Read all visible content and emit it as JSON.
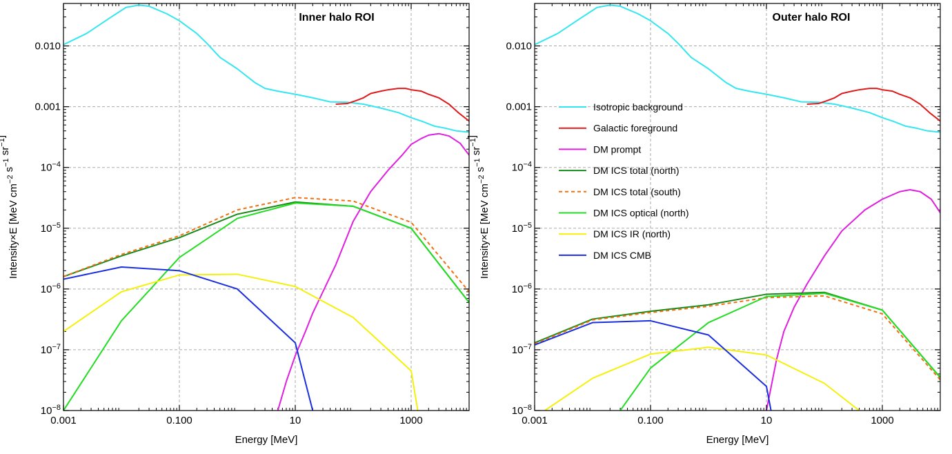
{
  "chart_data": [
    {
      "type": "line",
      "title": "Inner halo ROI",
      "xlabel": "Energy [MeV]",
      "ylabel": "Intensity×E [MeV cm⁻² s⁻¹ sr⁻¹]",
      "xscale": "log",
      "yscale": "log",
      "xlim": [
        0.001,
        10000
      ],
      "ylim": [
        1e-08,
        0.05
      ],
      "x_ticks": [
        0.001,
        0.1,
        10,
        1000
      ],
      "x_tick_labels": [
        "0.001",
        "0.100",
        "10",
        "1000"
      ],
      "y_ticks": [
        1e-08,
        1e-07,
        1e-06,
        1e-05,
        0.0001,
        0.001,
        0.01
      ],
      "y_tick_labels": [
        "10^-8",
        "10^-7",
        "10^-6",
        "10^-5",
        "10^-4",
        "0.001",
        "0.010"
      ],
      "grid": true,
      "legend": false,
      "series": [
        {
          "name": "Isotropic background",
          "color": "#33e6f0",
          "style": "solid",
          "points": [
            [
              0.001,
              0.0105
            ],
            [
              0.0025,
              0.016
            ],
            [
              0.006,
              0.028
            ],
            [
              0.012,
              0.043
            ],
            [
              0.02,
              0.047
            ],
            [
              0.03,
              0.045
            ],
            [
              0.06,
              0.034
            ],
            [
              0.1,
              0.026
            ],
            [
              0.2,
              0.016
            ],
            [
              0.3,
              0.011
            ],
            [
              0.5,
              0.0065
            ],
            [
              1,
              0.0042
            ],
            [
              2,
              0.0025
            ],
            [
              3,
              0.002
            ],
            [
              5,
              0.0018
            ],
            [
              10,
              0.0016
            ],
            [
              20,
              0.0014
            ],
            [
              40,
              0.0012
            ],
            [
              80,
              0.00118
            ],
            [
              150,
              0.0011
            ],
            [
              300,
              0.00095
            ],
            [
              600,
              0.0008
            ],
            [
              1000,
              0.00066
            ],
            [
              1500,
              0.00058
            ],
            [
              2500,
              0.00048
            ],
            [
              4000,
              0.00044
            ],
            [
              6000,
              0.0004
            ],
            [
              10000,
              0.00038
            ]
          ]
        },
        {
          "name": "Galactic foreground",
          "color": "#e01a1a",
          "style": "solid",
          "points": [
            [
              50,
              0.0011
            ],
            [
              80,
              0.00113
            ],
            [
              110,
              0.00125
            ],
            [
              150,
              0.0014
            ],
            [
              200,
              0.00165
            ],
            [
              300,
              0.0018
            ],
            [
              400,
              0.0019
            ],
            [
              600,
              0.002
            ],
            [
              800,
              0.002
            ],
            [
              1000,
              0.0019
            ],
            [
              1500,
              0.0018
            ],
            [
              2000,
              0.0016
            ],
            [
              3000,
              0.0014
            ],
            [
              4500,
              0.0011
            ],
            [
              6500,
              0.0008
            ],
            [
              10000,
              0.00058
            ]
          ]
        },
        {
          "name": "DM prompt",
          "color": "#e01ee0",
          "style": "solid",
          "points": [
            [
              5,
              1e-08
            ],
            [
              7,
              3e-08
            ],
            [
              10,
              8e-08
            ],
            [
              15,
              2e-07
            ],
            [
              20,
              4e-07
            ],
            [
              30,
              9e-07
            ],
            [
              50,
              2.5e-06
            ],
            [
              100,
              1.3e-05
            ],
            [
              200,
              4e-05
            ],
            [
              400,
              9e-05
            ],
            [
              700,
              0.00016
            ],
            [
              1000,
              0.00024
            ],
            [
              1500,
              0.0003
            ],
            [
              2000,
              0.00034
            ],
            [
              3000,
              0.00036
            ],
            [
              4500,
              0.00033
            ],
            [
              7000,
              0.00025
            ],
            [
              10000,
              0.00016
            ]
          ]
        },
        {
          "name": "DM ICS total (north)",
          "color": "#1a8a1a",
          "style": "solid",
          "points": [
            [
              0.001,
              1.6e-06
            ],
            [
              0.01,
              3.5e-06
            ],
            [
              0.1,
              7e-06
            ],
            [
              1,
              1.7e-05
            ],
            [
              10,
              2.7e-05
            ],
            [
              100,
              2.3e-05
            ],
            [
              1000,
              1e-05
            ],
            [
              10000,
              6e-07
            ]
          ]
        },
        {
          "name": "DM ICS total (south)",
          "color": "#f07010",
          "style": "dashed",
          "points": [
            [
              0.001,
              1.6e-06
            ],
            [
              0.01,
              3.7e-06
            ],
            [
              0.1,
              7.5e-06
            ],
            [
              1,
              2e-05
            ],
            [
              10,
              3.2e-05
            ],
            [
              100,
              2.8e-05
            ],
            [
              1000,
              1.25e-05
            ],
            [
              10000,
              9e-07
            ]
          ]
        },
        {
          "name": "DM ICS optical (north)",
          "color": "#22dd22",
          "style": "solid",
          "points": [
            [
              0.001,
              1e-08
            ],
            [
              0.01,
              3e-07
            ],
            [
              0.1,
              3.3e-06
            ],
            [
              1,
              1.45e-05
            ],
            [
              10,
              2.6e-05
            ],
            [
              100,
              2.3e-05
            ],
            [
              1000,
              1e-05
            ],
            [
              10000,
              6e-07
            ]
          ]
        },
        {
          "name": "DM ICS IR (north)",
          "color": "#f5f00a",
          "style": "solid",
          "points": [
            [
              0.001,
              2e-07
            ],
            [
              0.01,
              9e-07
            ],
            [
              0.1,
              1.7e-06
            ],
            [
              1,
              1.75e-06
            ],
            [
              10,
              1.1e-06
            ],
            [
              100,
              3.4e-07
            ],
            [
              1000,
              4.5e-08
            ],
            [
              1300,
              1e-08
            ]
          ]
        },
        {
          "name": "DM ICS CMB",
          "color": "#1a2ee0",
          "style": "solid",
          "points": [
            [
              0.001,
              1.45e-06
            ],
            [
              0.01,
              2.3e-06
            ],
            [
              0.1,
              2e-06
            ],
            [
              1,
              1e-06
            ],
            [
              10,
              1.3e-07
            ],
            [
              20,
              1e-08
            ]
          ]
        }
      ]
    },
    {
      "type": "line",
      "title": "Outer halo ROI",
      "xlabel": "Energy [MeV]",
      "ylabel": "Intensity×E [MeV cm⁻² s⁻¹ sr⁻¹]",
      "xscale": "log",
      "yscale": "log",
      "xlim": [
        0.001,
        10000
      ],
      "ylim": [
        1e-08,
        0.05
      ],
      "x_ticks": [
        0.001,
        0.1,
        10,
        1000
      ],
      "x_tick_labels": [
        "0.001",
        "0.100",
        "10",
        "1000"
      ],
      "y_ticks": [
        1e-08,
        1e-07,
        1e-06,
        1e-05,
        0.0001,
        0.001,
        0.01
      ],
      "y_tick_labels": [
        "10^-8",
        "10^-7",
        "10^-6",
        "10^-5",
        "10^-4",
        "0.001",
        "0.010"
      ],
      "grid": true,
      "legend": true,
      "legend_position": "center-left",
      "series": [
        {
          "name": "Isotropic background",
          "color": "#33e6f0",
          "style": "solid",
          "points": [
            [
              0.001,
              0.0105
            ],
            [
              0.0025,
              0.016
            ],
            [
              0.006,
              0.028
            ],
            [
              0.012,
              0.043
            ],
            [
              0.02,
              0.047
            ],
            [
              0.03,
              0.045
            ],
            [
              0.06,
              0.034
            ],
            [
              0.1,
              0.026
            ],
            [
              0.2,
              0.016
            ],
            [
              0.3,
              0.011
            ],
            [
              0.5,
              0.0065
            ],
            [
              1,
              0.0042
            ],
            [
              2,
              0.0025
            ],
            [
              3,
              0.002
            ],
            [
              5,
              0.0018
            ],
            [
              10,
              0.0016
            ],
            [
              20,
              0.0014
            ],
            [
              40,
              0.0012
            ],
            [
              80,
              0.00118
            ],
            [
              150,
              0.0011
            ],
            [
              300,
              0.00095
            ],
            [
              600,
              0.0008
            ],
            [
              1000,
              0.00066
            ],
            [
              1500,
              0.00058
            ],
            [
              2500,
              0.00048
            ],
            [
              4000,
              0.00044
            ],
            [
              6000,
              0.0004
            ],
            [
              10000,
              0.00038
            ]
          ]
        },
        {
          "name": "Galactic foreground",
          "color": "#e01a1a",
          "style": "solid",
          "points": [
            [
              50,
              0.0011
            ],
            [
              80,
              0.00113
            ],
            [
              110,
              0.00125
            ],
            [
              150,
              0.0014
            ],
            [
              200,
              0.00165
            ],
            [
              300,
              0.0018
            ],
            [
              400,
              0.0019
            ],
            [
              600,
              0.002
            ],
            [
              800,
              0.002
            ],
            [
              1000,
              0.0019
            ],
            [
              1500,
              0.0018
            ],
            [
              2000,
              0.0016
            ],
            [
              3000,
              0.0014
            ],
            [
              4500,
              0.0011
            ],
            [
              6500,
              0.0008
            ],
            [
              10000,
              0.00058
            ]
          ]
        },
        {
          "name": "DM prompt",
          "color": "#e01ee0",
          "style": "solid",
          "points": [
            [
              10,
              1e-08
            ],
            [
              15,
              7e-08
            ],
            [
              20,
              2e-07
            ],
            [
              30,
              5e-07
            ],
            [
              50,
              1.2e-06
            ],
            [
              100,
              3.5e-06
            ],
            [
              200,
              9e-06
            ],
            [
              500,
              2e-05
            ],
            [
              1000,
              3e-05
            ],
            [
              2000,
              4e-05
            ],
            [
              3000,
              4.3e-05
            ],
            [
              4500,
              4e-05
            ],
            [
              7000,
              3e-05
            ],
            [
              10000,
              1.8e-05
            ]
          ]
        },
        {
          "name": "DM ICS total (north)",
          "color": "#1a8a1a",
          "style": "solid",
          "points": [
            [
              0.001,
              1.3e-07
            ],
            [
              0.01,
              3.2e-07
            ],
            [
              0.1,
              4.3e-07
            ],
            [
              1,
              5.5e-07
            ],
            [
              10,
              8.2e-07
            ],
            [
              100,
              8.8e-07
            ],
            [
              1000,
              4.5e-07
            ],
            [
              10000,
              3.5e-08
            ]
          ]
        },
        {
          "name": "DM ICS total (south)",
          "color": "#f07010",
          "style": "dashed",
          "points": [
            [
              0.001,
              1.25e-07
            ],
            [
              0.01,
              3.1e-07
            ],
            [
              0.1,
              4.1e-07
            ],
            [
              1,
              5.2e-07
            ],
            [
              10,
              7.2e-07
            ],
            [
              100,
              7.7e-07
            ],
            [
              1000,
              3.9e-07
            ],
            [
              10000,
              3.2e-08
            ]
          ]
        },
        {
          "name": "DM ICS optical (north)",
          "color": "#22dd22",
          "style": "solid",
          "points": [
            [
              0.01,
              3e-09
            ],
            [
              0.03,
              1e-08
            ],
            [
              0.1,
              5e-08
            ],
            [
              1,
              2.8e-07
            ],
            [
              10,
              7.5e-07
            ],
            [
              100,
              8.5e-07
            ],
            [
              1000,
              4.5e-07
            ],
            [
              10000,
              3.5e-08
            ]
          ]
        },
        {
          "name": "DM ICS IR (north)",
          "color": "#f5f00a",
          "style": "solid",
          "points": [
            [
              0.0015,
              1e-08
            ],
            [
              0.01,
              3.4e-08
            ],
            [
              0.1,
              8.5e-08
            ],
            [
              1,
              1.1e-07
            ],
            [
              10,
              8.2e-08
            ],
            [
              100,
              2.8e-08
            ],
            [
              400,
              1e-08
            ]
          ]
        },
        {
          "name": "DM ICS CMB",
          "color": "#1a2ee0",
          "style": "solid",
          "points": [
            [
              0.001,
              1.2e-07
            ],
            [
              0.01,
              2.8e-07
            ],
            [
              0.1,
              3e-07
            ],
            [
              1,
              1.75e-07
            ],
            [
              10,
              2.5e-08
            ],
            [
              12,
              1e-08
            ]
          ]
        }
      ]
    }
  ]
}
